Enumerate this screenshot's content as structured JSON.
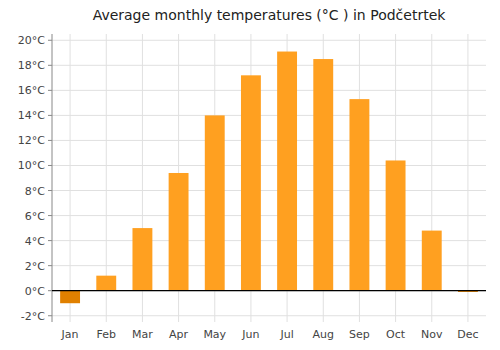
{
  "chart_data": {
    "type": "bar",
    "title": "Average monthly temperatures (°C ) in Podčetrtek",
    "categories": [
      "Jan",
      "Feb",
      "Mar",
      "Apr",
      "May",
      "Jun",
      "Jul",
      "Aug",
      "Sep",
      "Oct",
      "Nov",
      "Dec"
    ],
    "values": [
      -1.0,
      1.2,
      5.0,
      9.4,
      14.0,
      17.2,
      19.1,
      18.5,
      15.3,
      10.4,
      4.8,
      -0.1
    ],
    "colors": [
      "#E08000",
      "#FFA020",
      "#FFA020",
      "#FFA020",
      "#FFA020",
      "#FFA020",
      "#FFA020",
      "#FFA020",
      "#FFA020",
      "#FFA020",
      "#FFA020",
      "#E08000"
    ],
    "ylim": [
      -2.5,
      20.5
    ],
    "yticks": [
      {
        "value": -2,
        "label": "-2°C"
      },
      {
        "value": 0,
        "label": "0°C"
      },
      {
        "value": 2,
        "label": "2°C"
      },
      {
        "value": 4,
        "label": "4°C"
      },
      {
        "value": 6,
        "label": "6°C"
      },
      {
        "value": 8,
        "label": "8°C"
      },
      {
        "value": 10,
        "label": "10°C"
      },
      {
        "value": 12,
        "label": "12°C"
      },
      {
        "value": 14,
        "label": "14°C"
      },
      {
        "value": 16,
        "label": "16°C"
      },
      {
        "value": 18,
        "label": "18°C"
      },
      {
        "value": 20,
        "label": "20°C"
      }
    ],
    "grid": true
  }
}
